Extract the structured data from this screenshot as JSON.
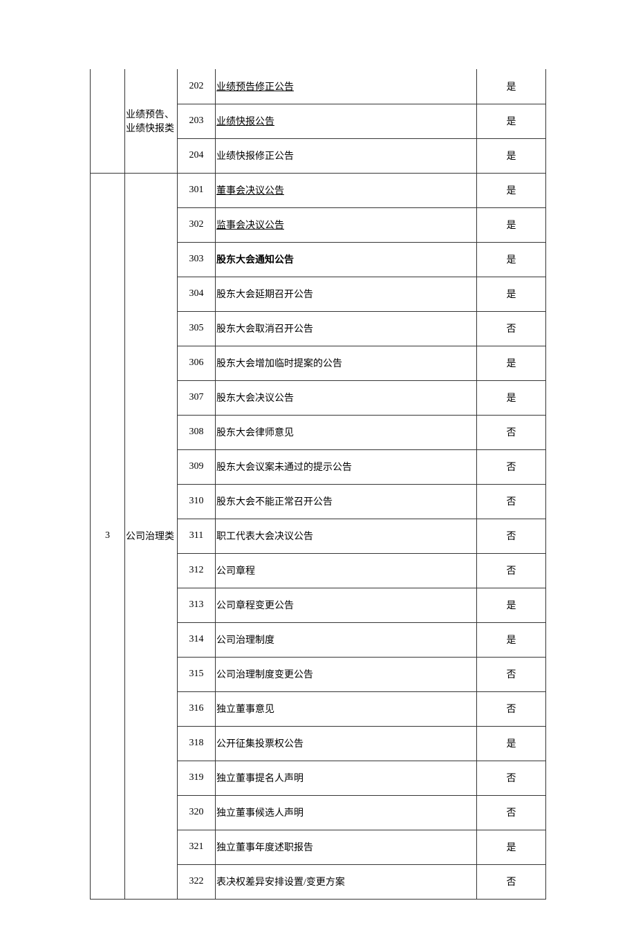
{
  "groups": [
    {
      "category_num": "",
      "category_name": "业绩预告、业绩快报类",
      "continued": true,
      "rows": [
        {
          "code": "202",
          "name": "业绩预告修正公告",
          "flag": "是",
          "underline": true
        },
        {
          "code": "203",
          "name": "业绩快报公告",
          "flag": "是",
          "underline": true
        },
        {
          "code": "204",
          "name": "业绩快报修正公告",
          "flag": "是"
        }
      ]
    },
    {
      "category_num": "3",
      "category_name": "公司治理类",
      "continued": false,
      "rows": [
        {
          "code": "301",
          "name": "董事会决议公告",
          "flag": "是",
          "underline": true
        },
        {
          "code": "302",
          "name": "监事会决议公告",
          "flag": "是",
          "underline": true
        },
        {
          "code": "303",
          "name": "股东大会通知公告",
          "flag": "是",
          "bold": true
        },
        {
          "code": "304",
          "name": "股东大会延期召开公告",
          "flag": "是"
        },
        {
          "code": "305",
          "name": "股东大会取消召开公告",
          "flag": "否"
        },
        {
          "code": "306",
          "name": "股东大会增加临时提案的公告",
          "flag": "是"
        },
        {
          "code": "307",
          "name": "股东大会决议公告",
          "flag": "是"
        },
        {
          "code": "308",
          "name": "股东大会律师意见",
          "flag": "否"
        },
        {
          "code": "309",
          "name": "股东大会议案未通过的提示公告",
          "flag": "否"
        },
        {
          "code": "310",
          "name": "股东大会不能正常召开公告",
          "flag": "否"
        },
        {
          "code": "311",
          "name": "职工代表大会决议公告",
          "flag": "否"
        },
        {
          "code": "312",
          "name": "公司章程",
          "flag": "否"
        },
        {
          "code": "313",
          "name": "公司章程变更公告",
          "flag": "是"
        },
        {
          "code": "314",
          "name": "公司治理制度",
          "flag": "是"
        },
        {
          "code": "315",
          "name": "公司治理制度变更公告",
          "flag": "否"
        },
        {
          "code": "316",
          "name": "独立董事意见",
          "flag": "否"
        },
        {
          "code": "318",
          "name": "公开征集投票权公告",
          "flag": "是"
        },
        {
          "code": "319",
          "name": "独立董事提名人声明",
          "flag": "否"
        },
        {
          "code": "320",
          "name": "独立董事候选人声明",
          "flag": "否"
        },
        {
          "code": "321",
          "name": "独立董事年度述职报告",
          "flag": "是"
        },
        {
          "code": "322",
          "name": "表决权差异安排设置/变更方案",
          "flag": "否"
        }
      ]
    }
  ]
}
